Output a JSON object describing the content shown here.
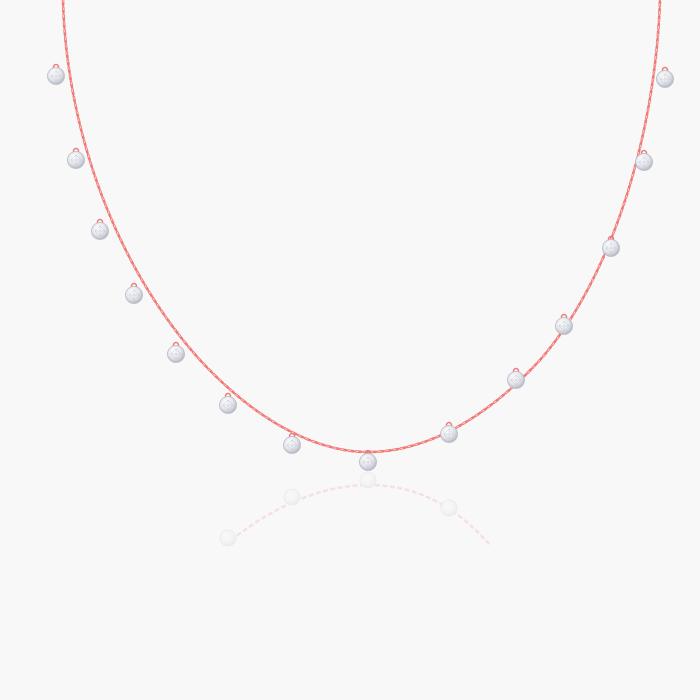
{
  "colors": {
    "background": "#f8f8f8",
    "chain": "#f07a78",
    "stone_fill": "#eceef3",
    "stone_edge": "#b9bcc6"
  }
}
